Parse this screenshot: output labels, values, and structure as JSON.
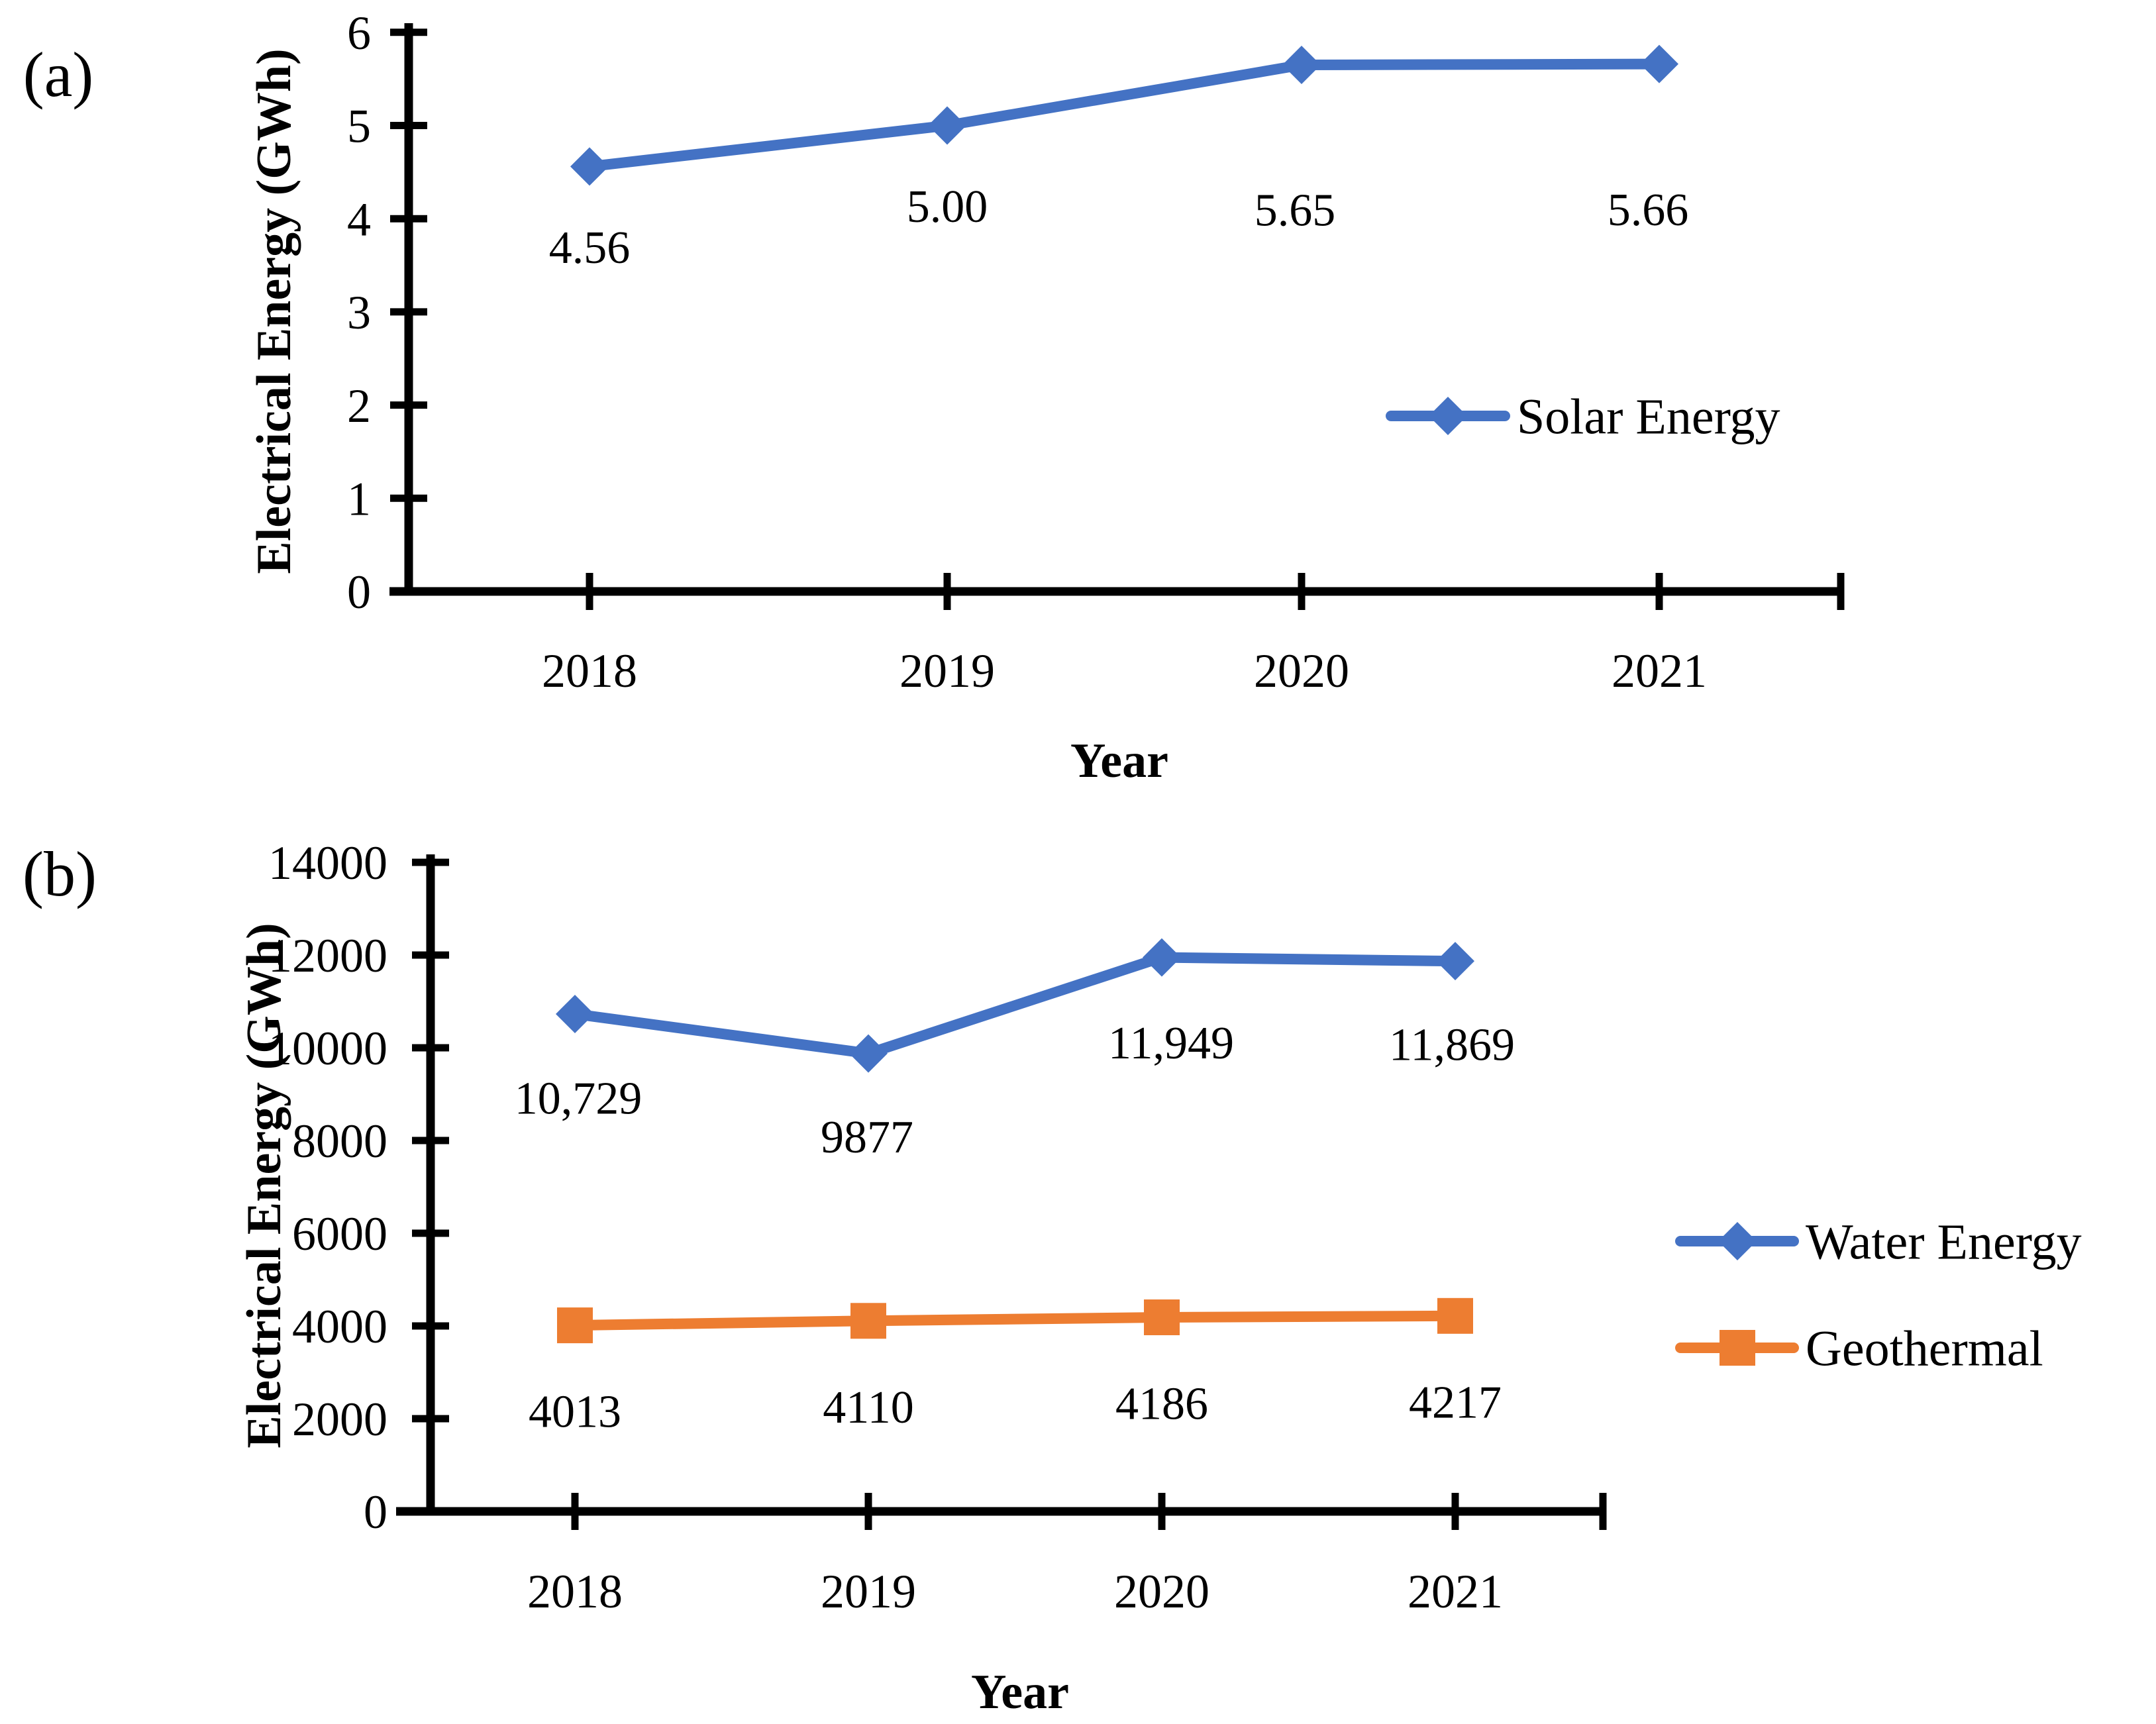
{
  "figure": {
    "panels": [
      {
        "panel_label": "(a)",
        "ylabel": "Electrical Energy (GWh)",
        "xlabel": "Year"
      },
      {
        "panel_label": "(b)",
        "ylabel": "Electrical Energy (GWh)",
        "xlabel": "Year"
      }
    ],
    "colors": {
      "blue_series": "#4472C4",
      "orange_series": "#ED7D31",
      "axis": "#000000"
    }
  },
  "chart_data": [
    {
      "type": "line",
      "panel": "a",
      "title": "",
      "xlabel": "Year",
      "ylabel": "Electrical Energy (GWh)",
      "categories": [
        "2018",
        "2019",
        "2020",
        "2021"
      ],
      "series": [
        {
          "name": "Solar Energy",
          "color": "#4472C4",
          "marker": "diamond",
          "values": [
            4.56,
            5.0,
            5.65,
            5.66
          ],
          "point_labels": [
            "4.56",
            "5.00",
            "5.65",
            "5.66"
          ]
        }
      ],
      "ylim": [
        0,
        6
      ],
      "yticks": [
        "0",
        "1",
        "2",
        "3",
        "4",
        "5",
        "6"
      ],
      "grid": false,
      "legend_position": "right-center"
    },
    {
      "type": "line",
      "panel": "b",
      "title": "",
      "xlabel": "Year",
      "ylabel": "Electrical Energy (GWh)",
      "categories": [
        "2018",
        "2019",
        "2020",
        "2021"
      ],
      "series": [
        {
          "name": "Water Energy",
          "color": "#4472C4",
          "marker": "diamond",
          "values": [
            10729,
            9877,
            11949,
            11869
          ],
          "point_labels": [
            "10,729",
            "9877",
            "11,949",
            "11,869"
          ]
        },
        {
          "name": "Geothermal",
          "color": "#ED7D31",
          "marker": "square",
          "values": [
            4013,
            4110,
            4186,
            4217
          ],
          "point_labels": [
            "4013",
            "4110",
            "4186",
            "4217"
          ]
        }
      ],
      "ylim": [
        0,
        14000
      ],
      "yticks": [
        "0",
        "2000",
        "4000",
        "6000",
        "8000",
        "10000",
        "12000",
        "14000"
      ],
      "grid": false,
      "legend_position": "right-center"
    }
  ]
}
